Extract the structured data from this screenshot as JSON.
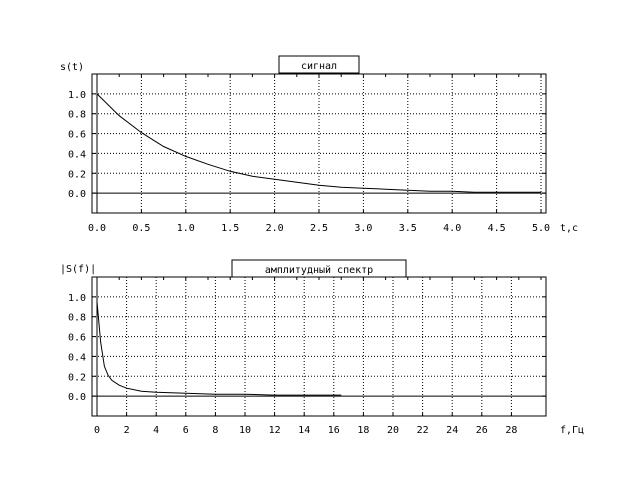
{
  "chart_data": [
    {
      "type": "line",
      "title": "сигнал",
      "xlabel": "t,c",
      "ylabel": "s(t)",
      "xlim": [
        0,
        5
      ],
      "ylim": [
        -0.2,
        1.2
      ],
      "grid": true,
      "x_ticks": [
        "0.0",
        "0.5",
        "1.0",
        "1.5",
        "2.0",
        "2.5",
        "3.0",
        "3.5",
        "4.0",
        "4.5",
        "5.0"
      ],
      "y_ticks": [
        "1.0",
        "0.8",
        "0.6",
        "0.4",
        "0.2",
        "0.0"
      ],
      "series": [
        {
          "x": [
            0,
            0.25,
            0.5,
            0.75,
            1.0,
            1.25,
            1.5,
            1.75,
            2.0,
            2.25,
            2.5,
            2.75,
            3.0,
            3.25,
            3.5,
            3.75,
            4.0,
            4.25,
            4.5,
            4.75,
            5.0
          ],
          "y": [
            1.0,
            0.78,
            0.61,
            0.47,
            0.37,
            0.29,
            0.22,
            0.17,
            0.14,
            0.11,
            0.08,
            0.06,
            0.05,
            0.04,
            0.03,
            0.02,
            0.02,
            0.01,
            0.01,
            0.01,
            0.01
          ]
        }
      ]
    },
    {
      "type": "line",
      "title": "амплитудный спектр",
      "xlabel": "f,Гц",
      "ylabel": "|S(f)|",
      "xlim": [
        0,
        30
      ],
      "ylim": [
        -0.2,
        1.2
      ],
      "grid": true,
      "x_ticks": [
        "0",
        "2",
        "4",
        "6",
        "8",
        "10",
        "12",
        "14",
        "16",
        "18",
        "20",
        "22",
        "24",
        "26",
        "28"
      ],
      "y_ticks": [
        "1.0",
        "0.8",
        "0.6",
        "0.4",
        "0.2",
        "0.0"
      ],
      "series": [
        {
          "x": [
            0,
            0.25,
            0.5,
            0.75,
            1.0,
            1.5,
            2.0,
            3.0,
            4.0,
            6.0,
            8.0,
            10.0,
            12.0,
            14.0,
            16.5
          ],
          "y": [
            0.95,
            0.54,
            0.3,
            0.21,
            0.16,
            0.11,
            0.08,
            0.05,
            0.04,
            0.03,
            0.02,
            0.02,
            0.01,
            0.01,
            0.01
          ]
        }
      ]
    }
  ]
}
